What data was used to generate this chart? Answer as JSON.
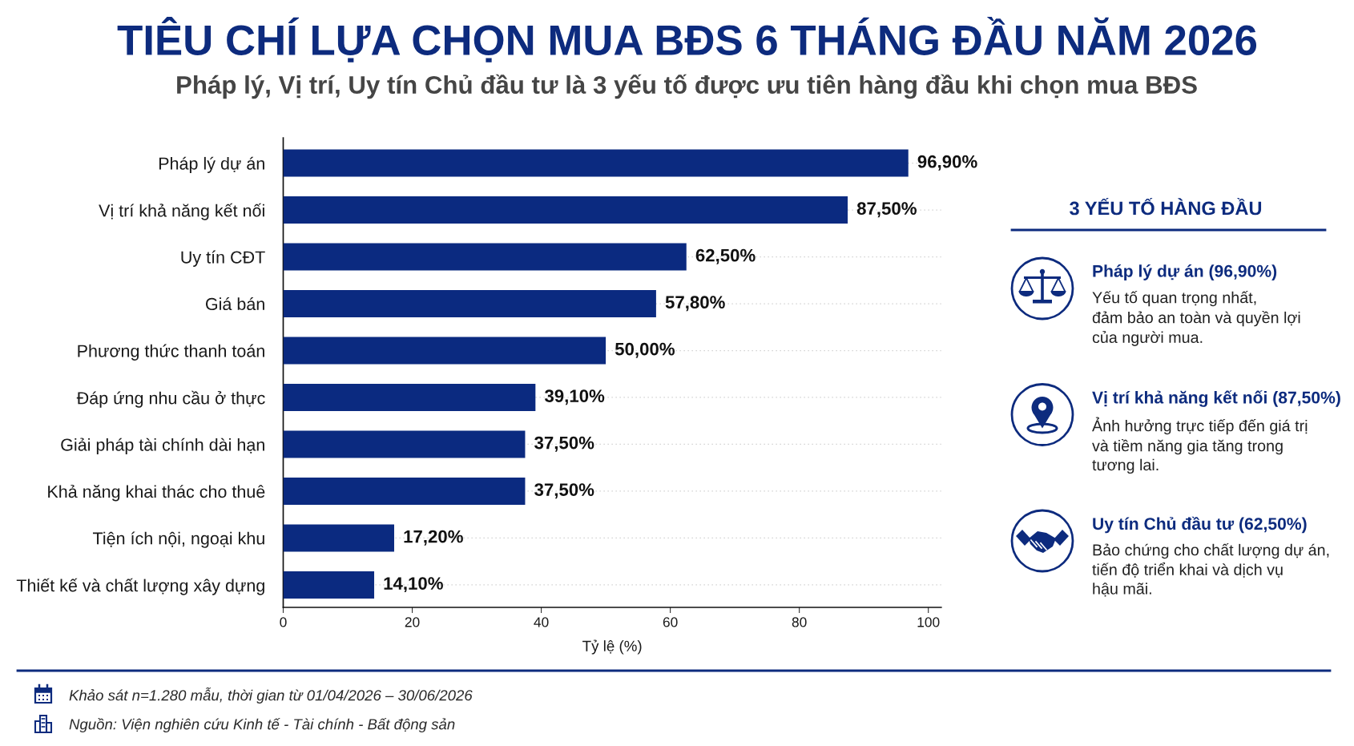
{
  "chart_data": [
    {
      "type": "bar",
      "orientation": "horizontal",
      "title": "TIÊU CHÍ LỰA CHỌN MUA BĐS 6 THÁNG ĐẦU NĂM 2026",
      "subtitle": "Pháp lý, Vị trí, Uy tín Chủ đầu tư là 3 yếu tố được ưu tiên hàng đầu khi chọn mua BĐS",
      "xlabel": "Tỷ lệ (%)",
      "categories": [
        "Pháp lý dự án",
        "Vị trí khả năng kết nối",
        "Uy tín CĐT",
        "Giá bán",
        "Phương thức thanh toán",
        "Đáp ứng nhu cầu ở thực",
        "Giải pháp tài chính dài hạn",
        "Khả năng khai thác cho thuê",
        "Tiện ích nội, ngoại khu",
        "Thiết kế và chất lượng xây dựng"
      ],
      "values": [
        96.9,
        87.5,
        62.5,
        57.8,
        50.0,
        39.1,
        37.5,
        37.5,
        17.2,
        14.1
      ],
      "value_labels": [
        "96,90%",
        "87,50%",
        "62,50%",
        "57,80%",
        "50,00%",
        "39,10%",
        "37,50%",
        "37,50%",
        "17,20%",
        "14,10%"
      ],
      "color": "#0b2a80",
      "xlim": [
        0,
        102
      ],
      "xticks": [
        0,
        20,
        40,
        60,
        80,
        100
      ],
      "grid": "y",
      "annotations": [
        "Khảo sát n=1.280 mẫu, thời gian từ 01/04/2026 – 30/06/2026",
        "Nguồn: Viện nghiên cứu Kinh tế - Tài chính - Bất động sản"
      ]
    },
    {
      "type": "other",
      "title": "3 YẾU TỐ HÀNG ĐẦU",
      "annotations": [
        "Pháp lý dự án (96,90%)",
        "Yếu tố quan trọng nhất,\nđảm bảo an toàn và quyền lợi\ncủa người mua.",
        "Vị trí khả năng kết nối (87,50%)",
        "Ảnh hưởng trực tiếp đến giá trị\nvà tiềm năng gia tăng trong\ntương lai.",
        "Uy tín Chủ đầu tư (62,50%)",
        "Bảo chứng cho chất lượng dự án,\ntiến độ triển khai và dịch vụ\nhậu mãi."
      ]
    }
  ]
}
